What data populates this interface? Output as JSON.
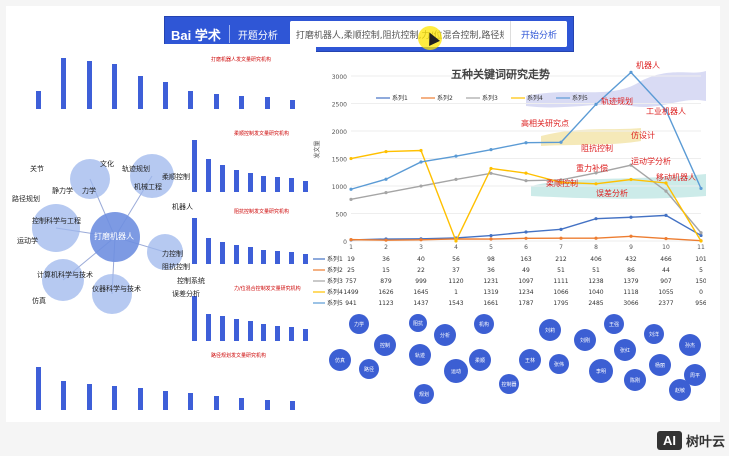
{
  "topbar": {
    "logo": "Bai  学术",
    "slogan": "开题分析",
    "search_value": "打磨机器人,柔顺控制,阻抗控制,力/位混合控制,路径规划",
    "search_button": "开始分析"
  },
  "mini_titles": [
    "打磨机器人发文量研究机构",
    "柔顺控制发文量研究机构",
    "阻抗控制发文量研究机构",
    "力/位混合控制发文量研究机构",
    "路径规划发文量研究机构"
  ],
  "mindmap": {
    "center": "打磨机器人",
    "labels": [
      "力学",
      "机械工程",
      "控制科学与工程",
      "计算机科学与技术",
      "仪器科学与技术",
      "静力学",
      "柔顺控制",
      "机器人",
      "路径规划",
      "运动学",
      "阻抗控制",
      "关节",
      "控制系统",
      "力控制",
      "误差分析",
      "轨迹规划",
      "文化",
      "仿真"
    ]
  },
  "chart_data": {
    "type": "line",
    "title": "五种关键词研究走势",
    "ylabel": "发文量",
    "categories": [
      "1",
      "2",
      "3",
      "4",
      "5",
      "6",
      "7",
      "8",
      "9",
      "10",
      "11"
    ],
    "ylim": [
      0,
      3000
    ],
    "yticks": [
      "0",
      "500",
      "1000",
      "1500",
      "2000",
      "2500",
      "3000"
    ],
    "series": [
      {
        "name": "系列1",
        "color": "#4472c4",
        "values": [
          19,
          36,
          40,
          56,
          98,
          163,
          212,
          406,
          432,
          466,
          101
        ]
      },
      {
        "name": "系列2",
        "color": "#ed7d31",
        "values": [
          25,
          15,
          22,
          37,
          36,
          49,
          51,
          51,
          86,
          44,
          5
        ]
      },
      {
        "name": "系列3",
        "color": "#a5a5a5",
        "values": [
          757,
          879,
          999,
          1120,
          1231,
          1097,
          1111,
          1238,
          1379,
          907,
          150
        ]
      },
      {
        "name": "系列4",
        "color": "#ffc000",
        "values": [
          1499,
          1626,
          1645,
          1,
          1319,
          1234,
          1066,
          1040,
          1118,
          1055,
          0
        ]
      },
      {
        "name": "系列5",
        "color": "#5b9bd5",
        "values": [
          941,
          1123,
          1437,
          1543,
          1661,
          1787,
          1795,
          2485,
          3066,
          2377,
          956
        ]
      }
    ]
  },
  "stream_labels": [
    "机器人",
    "轨迹规划",
    "工业机器人",
    "高相关研究点",
    "仿设计",
    "阻抗控制",
    "运动学分析",
    "重力补偿",
    "柔顺控制",
    "移动机器人",
    "误差分析"
  ],
  "bubbles": [
    "仿真",
    "力学",
    "路径",
    "控制",
    "阻抗",
    "轨迹",
    "规划",
    "分析",
    "运动",
    "机构",
    "柔顺",
    "控制器",
    "王林",
    "刘莉",
    "张伟",
    "刘刚",
    "李明",
    "王强",
    "张红",
    "陈刚",
    "刘洋",
    "杨丽",
    "赵敏",
    "孙杰",
    "周平"
  ],
  "toolbar": {
    "icons": [
      "zoom-in",
      "zoom-out",
      "fit",
      "rotate",
      "pen",
      "download"
    ]
  },
  "watermark": {
    "box": "AI",
    "text": "树叶云"
  }
}
